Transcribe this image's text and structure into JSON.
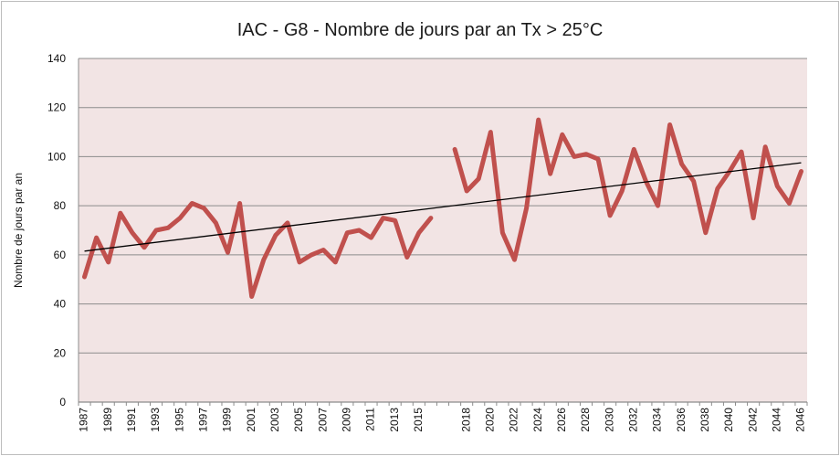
{
  "chart_data": {
    "type": "line",
    "title": "IAC - G8 - Nombre de jours par an Tx > 25°C",
    "ylabel": "Nombre de jours par an",
    "xlabel": "",
    "ylim": [
      0,
      140
    ],
    "yticks": [
      0,
      20,
      40,
      60,
      80,
      100,
      120,
      140
    ],
    "grid": true,
    "legend": "none",
    "colors": {
      "series": "#c0504d",
      "trend": "#000000",
      "plot_bg": "#f2e4e4",
      "grid": "#8c8c8c"
    },
    "xticks": [
      "1987",
      "1989",
      "1991",
      "1993",
      "1995",
      "1997",
      "1999",
      "2001",
      "2003",
      "2005",
      "2007",
      "2009",
      "2011",
      "2013",
      "2015",
      "2018",
      "2020",
      "2022",
      "2024",
      "2026",
      "2028",
      "2030",
      "2032",
      "2034",
      "2036",
      "2038",
      "2040",
      "2042",
      "2044",
      "2046"
    ],
    "categories": [
      "1987",
      "1988",
      "1989",
      "1990",
      "1991",
      "1992",
      "1993",
      "1994",
      "1995",
      "1996",
      "1997",
      "1998",
      "1999",
      "2000",
      "2001",
      "2002",
      "2003",
      "2004",
      "2005",
      "2006",
      "2007",
      "2008",
      "2009",
      "2010",
      "2011",
      "2012",
      "2013",
      "2014",
      "2015",
      "2016",
      "",
      "2017",
      "2018",
      "2019",
      "2020",
      "2021",
      "2022",
      "2023",
      "2024",
      "2025",
      "2026",
      "2027",
      "2028",
      "2029",
      "2030",
      "2031",
      "2032",
      "2033",
      "2034",
      "2035",
      "2036",
      "2037",
      "2038",
      "2039",
      "2040",
      "2041",
      "2042",
      "2043",
      "2044",
      "2045",
      "2046"
    ],
    "series": [
      {
        "values": [
          51,
          67,
          57,
          77,
          69,
          63,
          70,
          71,
          75,
          81,
          79,
          73,
          61,
          81,
          43,
          58,
          68,
          73,
          57,
          60,
          62,
          57,
          69,
          70,
          67,
          75,
          74,
          59,
          69,
          75,
          null,
          103,
          86,
          91,
          110,
          69,
          58,
          79,
          115,
          93,
          109,
          100,
          101,
          99,
          76,
          86,
          103,
          90,
          80,
          113,
          97,
          90,
          69,
          87,
          94,
          102,
          75,
          104,
          88,
          81,
          94
        ]
      }
    ],
    "trend": {
      "start": 61.5,
      "end": 97.5
    }
  }
}
